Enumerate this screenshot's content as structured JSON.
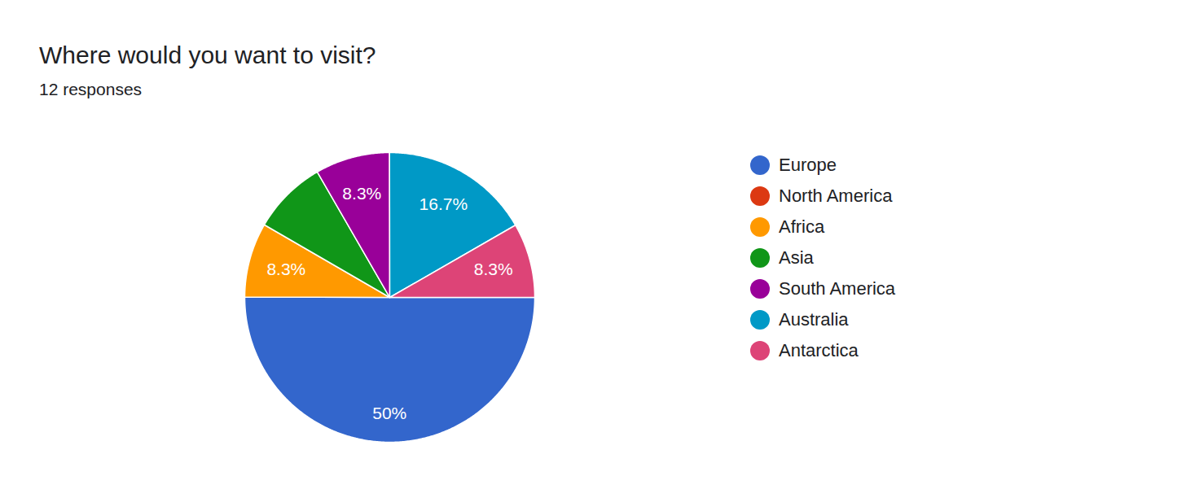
{
  "chart_data": {
    "type": "pie",
    "title": "Where would you want to visit?",
    "subtitle": "12 responses",
    "categories": [
      "Europe",
      "North America",
      "Africa",
      "Asia",
      "South America",
      "Australia",
      "Antarctica"
    ],
    "values": [
      50,
      0,
      8.3,
      8.3,
      8.3,
      16.7,
      8.3
    ],
    "value_labels": [
      "50%",
      null,
      "8.3%",
      null,
      "8.3%",
      "16.7%",
      "8.3%"
    ],
    "colors": [
      "#3366cc",
      "#dc3912",
      "#ff9900",
      "#109618",
      "#990099",
      "#0099c6",
      "#dd4477"
    ],
    "data_labels": true,
    "legend": "right"
  }
}
